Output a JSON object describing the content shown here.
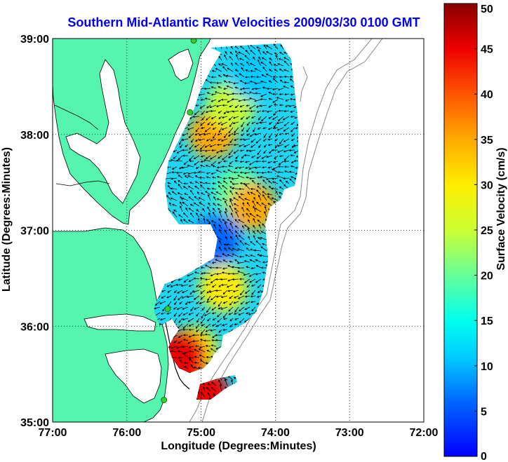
{
  "title": "Southern Mid-Atlantic Raw Velocities 2009/03/30 0100 GMT",
  "xaxis": {
    "label": "Longitude (Degrees:Minutes)",
    "ticks": [
      "77:00",
      "76:00",
      "75:00",
      "74:00",
      "73:00",
      "72:00"
    ]
  },
  "yaxis": {
    "label": "Latitude (Degrees:Minutes)",
    "ticks": [
      "39:00",
      "38:00",
      "37:00",
      "36:00",
      "35:00"
    ]
  },
  "colorbar": {
    "label": "Surface Velocity (cm/s)",
    "ticks": [
      "50",
      "45",
      "40",
      "35",
      "30",
      "25",
      "20",
      "15",
      "10",
      "5",
      "0"
    ],
    "min": 0,
    "max": 50
  },
  "colors": {
    "land": "#55f5b0",
    "title": "#0000ee",
    "station": "#33cc33",
    "bathymetry": "#888888"
  },
  "chart_data": {
    "type": "heatmap",
    "title": "Southern Mid-Atlantic Raw Velocities 2009/03/30 0100 GMT",
    "xlabel": "Longitude (Degrees:Minutes)",
    "ylabel": "Latitude (Degrees:Minutes)",
    "colorbar_label": "Surface Velocity (cm/s)",
    "xlim": [
      -77,
      -72
    ],
    "ylim": [
      35,
      39
    ],
    "clim": [
      0,
      50
    ],
    "grid": true,
    "stations": [
      {
        "lon": -75.1,
        "lat": 38.98
      },
      {
        "lon": -75.15,
        "lat": 38.23
      },
      {
        "lon": -75.45,
        "lat": 36.18
      },
      {
        "lon": -75.5,
        "lat": 35.23
      }
    ],
    "velocity_regions": [
      {
        "lon": -74.85,
        "lat": 38.0,
        "speed": 38
      },
      {
        "lon": -74.6,
        "lat": 38.3,
        "speed": 27
      },
      {
        "lon": -74.3,
        "lat": 38.6,
        "speed": 13
      },
      {
        "lon": -74.5,
        "lat": 37.4,
        "speed": 20
      },
      {
        "lon": -74.3,
        "lat": 37.25,
        "speed": 35
      },
      {
        "lon": -74.8,
        "lat": 36.9,
        "speed": 10
      },
      {
        "lon": -74.7,
        "lat": 36.4,
        "speed": 30
      },
      {
        "lon": -75.1,
        "lat": 35.75,
        "speed": 32
      },
      {
        "lon": -75.25,
        "lat": 35.7,
        "speed": 45
      },
      {
        "lon": -74.95,
        "lat": 35.3,
        "speed": 48
      }
    ]
  }
}
